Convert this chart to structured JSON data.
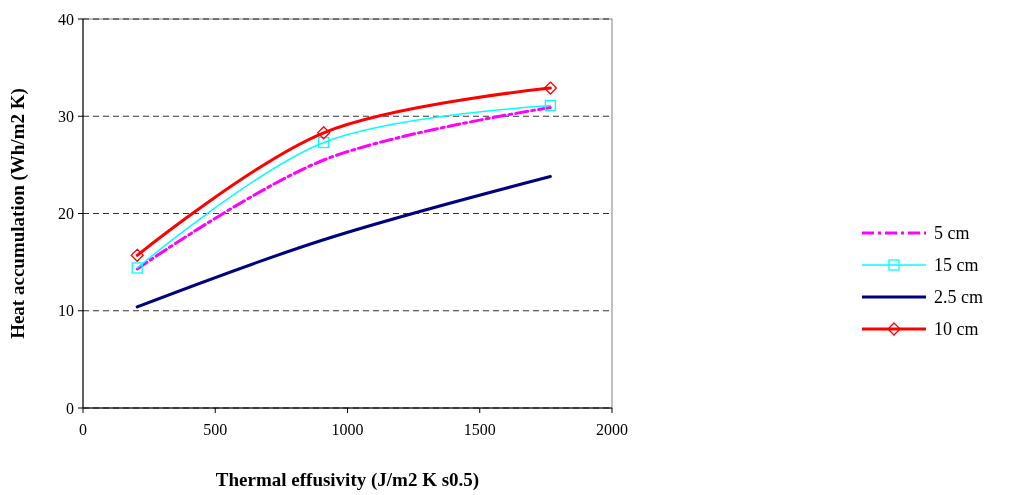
{
  "chart_data": {
    "type": "line",
    "xlabel": "Thermal effusivity (J/m2 K s0.5)",
    "ylabel": "Heat accumulation (Wh/m2 K)",
    "x": [
      205,
      910,
      1767
    ],
    "xlim": [
      0,
      2000
    ],
    "xticks": [
      0,
      500,
      1000,
      1500,
      2000
    ],
    "ylim": [
      0,
      40
    ],
    "yticks": [
      0,
      10,
      20,
      30,
      40
    ],
    "grid": "y",
    "legend": "right",
    "series": [
      {
        "name": "5 cm",
        "color": "#ff00ff",
        "values": [
          14.3,
          25.5,
          30.9
        ],
        "line_style": "dashed",
        "marker": "none"
      },
      {
        "name": "15 cm",
        "color": "#00ffff",
        "values": [
          14.4,
          27.3,
          31.1
        ],
        "line_style": "solid",
        "marker": "square"
      },
      {
        "name": "2.5 cm",
        "color": "#000080",
        "values": [
          10.4,
          17.3,
          23.8
        ],
        "line_style": "solid",
        "marker": "none"
      },
      {
        "name": "10 cm",
        "color": "#ff0000",
        "values": [
          15.7,
          28.3,
          32.9
        ],
        "line_style": "solid",
        "marker": "diamond"
      }
    ]
  }
}
